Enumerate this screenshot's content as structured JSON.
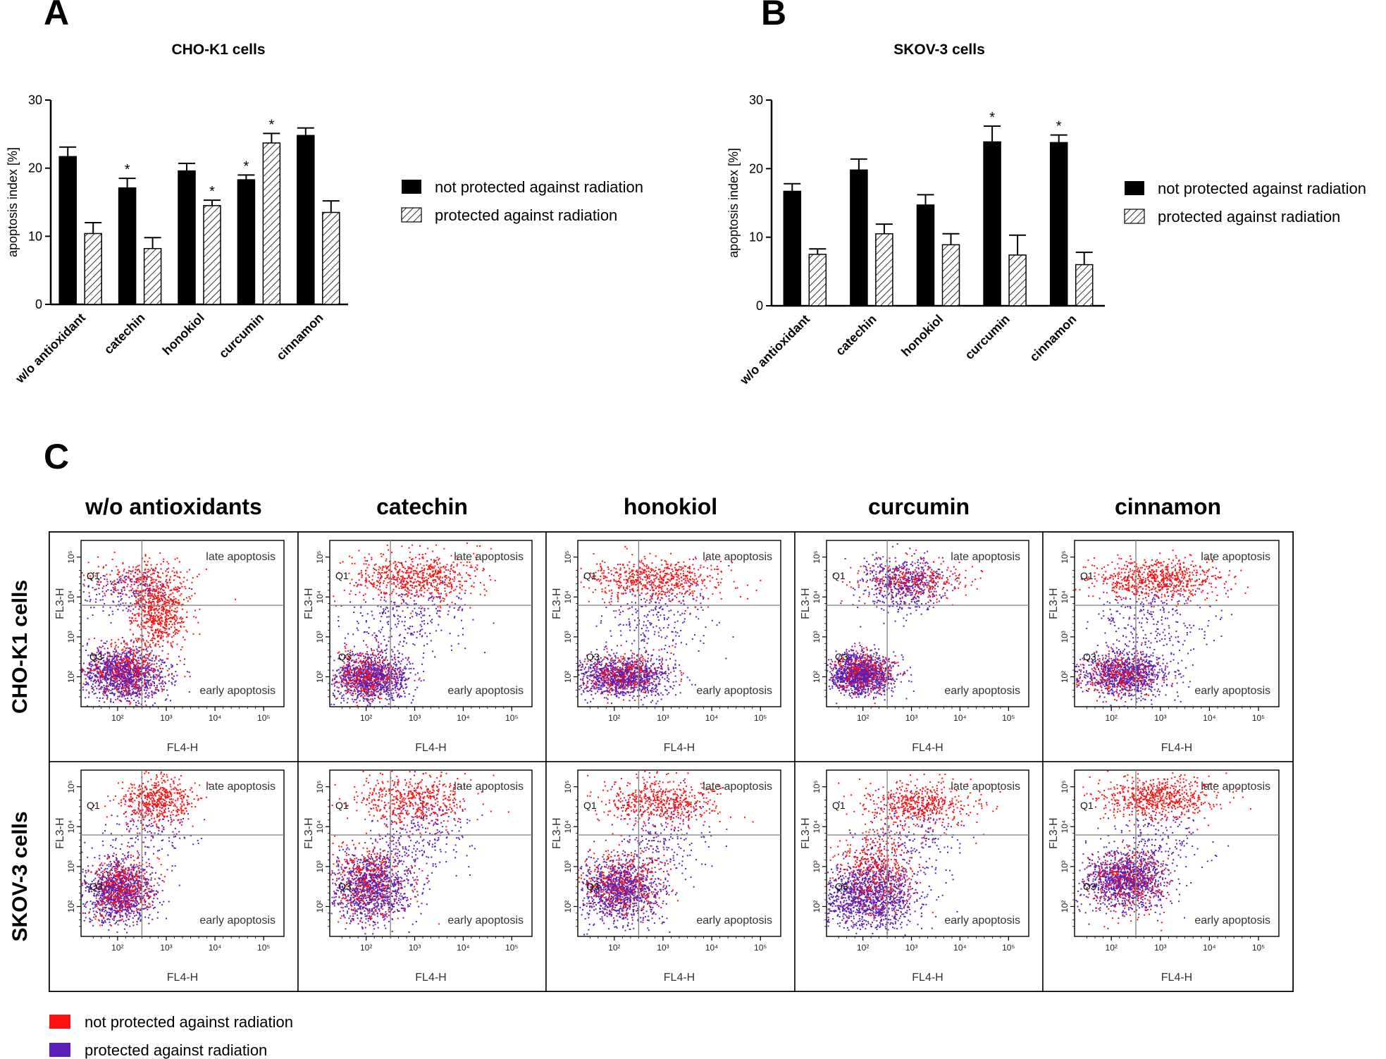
{
  "panels": {
    "A": "A",
    "B": "B",
    "C": "C"
  },
  "colors": {
    "not_protected": "#ff1010",
    "protected": "#5a1fb8",
    "bar_black": "#000000"
  },
  "chart_data": [
    {
      "type": "bar",
      "title": "CHO-K1 cells",
      "ylabel": "apoptosis index [%]",
      "ylim": [
        0,
        30
      ],
      "yticks": [
        "0",
        "10",
        "20",
        "30"
      ],
      "categories": [
        "w/o antioxidant",
        "catechin",
        "honokiol",
        "curcumin",
        "cinnamon"
      ],
      "series": [
        {
          "name": "not protected against radiation",
          "fill": "solid",
          "values": [
            21.7,
            17.1,
            19.6,
            18.3,
            24.8
          ],
          "errors": [
            1.4,
            1.4,
            1.1,
            0.7,
            1.1
          ],
          "significant": [
            false,
            true,
            false,
            true,
            false
          ]
        },
        {
          "name": "protected against radiation",
          "fill": "hatched",
          "values": [
            10.4,
            8.2,
            14.5,
            23.7,
            13.5
          ],
          "errors": [
            1.6,
            1.6,
            0.8,
            1.4,
            1.7
          ],
          "significant": [
            false,
            false,
            true,
            true,
            false
          ]
        }
      ],
      "marker": "*"
    },
    {
      "type": "bar",
      "title": "SKOV-3 cells",
      "ylabel": "apoptosis index [%]",
      "ylim": [
        0,
        30
      ],
      "yticks": [
        "0",
        "10",
        "20",
        "30"
      ],
      "categories": [
        "w/o antioxidant",
        "catechin",
        "honokiol",
        "curcumin",
        "cinnamon"
      ],
      "series": [
        {
          "name": "not protected against radiation",
          "fill": "solid",
          "values": [
            16.7,
            19.8,
            14.7,
            23.9,
            23.8
          ],
          "errors": [
            1.1,
            1.6,
            1.5,
            2.3,
            1.1
          ],
          "significant": [
            false,
            false,
            false,
            true,
            true
          ]
        },
        {
          "name": "protected against radiation",
          "fill": "hatched",
          "values": [
            7.5,
            10.5,
            8.9,
            7.4,
            6.0
          ],
          "errors": [
            0.8,
            1.4,
            1.6,
            2.9,
            1.8
          ],
          "significant": [
            false,
            false,
            false,
            false,
            false
          ]
        }
      ],
      "marker": "*"
    }
  ],
  "flow": {
    "columns": [
      "w/o antioxidants",
      "catechin",
      "honokiol",
      "curcumin",
      "cinnamon"
    ],
    "rows": [
      "CHO-K1 cells",
      "SKOV-3 cells"
    ],
    "xlabel": "FL4-H",
    "ylabel": "FL3-H",
    "ticks": [
      "10²",
      "10³",
      "10⁴",
      "10⁵"
    ],
    "q1": "Q1",
    "q3": "Q3",
    "late": "late apoptosis",
    "early": "early apoptosis"
  },
  "legend": {
    "not_protected": "not protected against radiation",
    "protected": "protected against radiation"
  }
}
